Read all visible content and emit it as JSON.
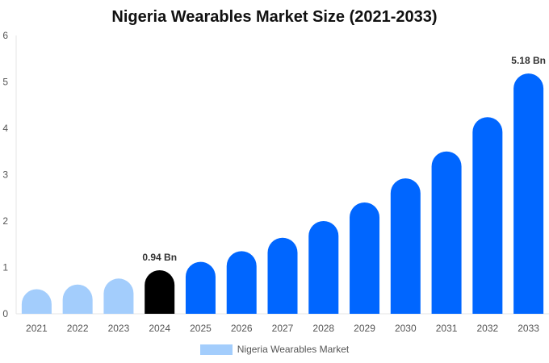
{
  "chart_data": {
    "type": "bar",
    "title": "Nigeria Wearables Market Size (2021-2033)",
    "xlabel": "",
    "ylabel": "",
    "categories": [
      "2021",
      "2022",
      "2023",
      "2024",
      "2025",
      "2026",
      "2027",
      "2028",
      "2029",
      "2030",
      "2031",
      "2032",
      "2033"
    ],
    "series": [
      {
        "name": "Nigeria Wearables Market",
        "values": [
          0.53,
          0.63,
          0.76,
          0.94,
          1.12,
          1.35,
          1.64,
          2.0,
          2.4,
          2.92,
          3.5,
          4.24,
          5.18
        ]
      }
    ],
    "ylim": [
      0,
      6
    ],
    "yticks": [
      0,
      1,
      2,
      3,
      4,
      5,
      6
    ],
    "grid": false,
    "legend_position": "bottom",
    "annotations": [
      {
        "category": "2024",
        "text": "0.94 Bn"
      },
      {
        "category": "2033",
        "text": "5.18 Bn"
      }
    ],
    "colors": {
      "historical": "#a3cdfc",
      "base_year": "#000000",
      "forecast": "#0066ff"
    },
    "legend_color": "#a3cdfc"
  }
}
